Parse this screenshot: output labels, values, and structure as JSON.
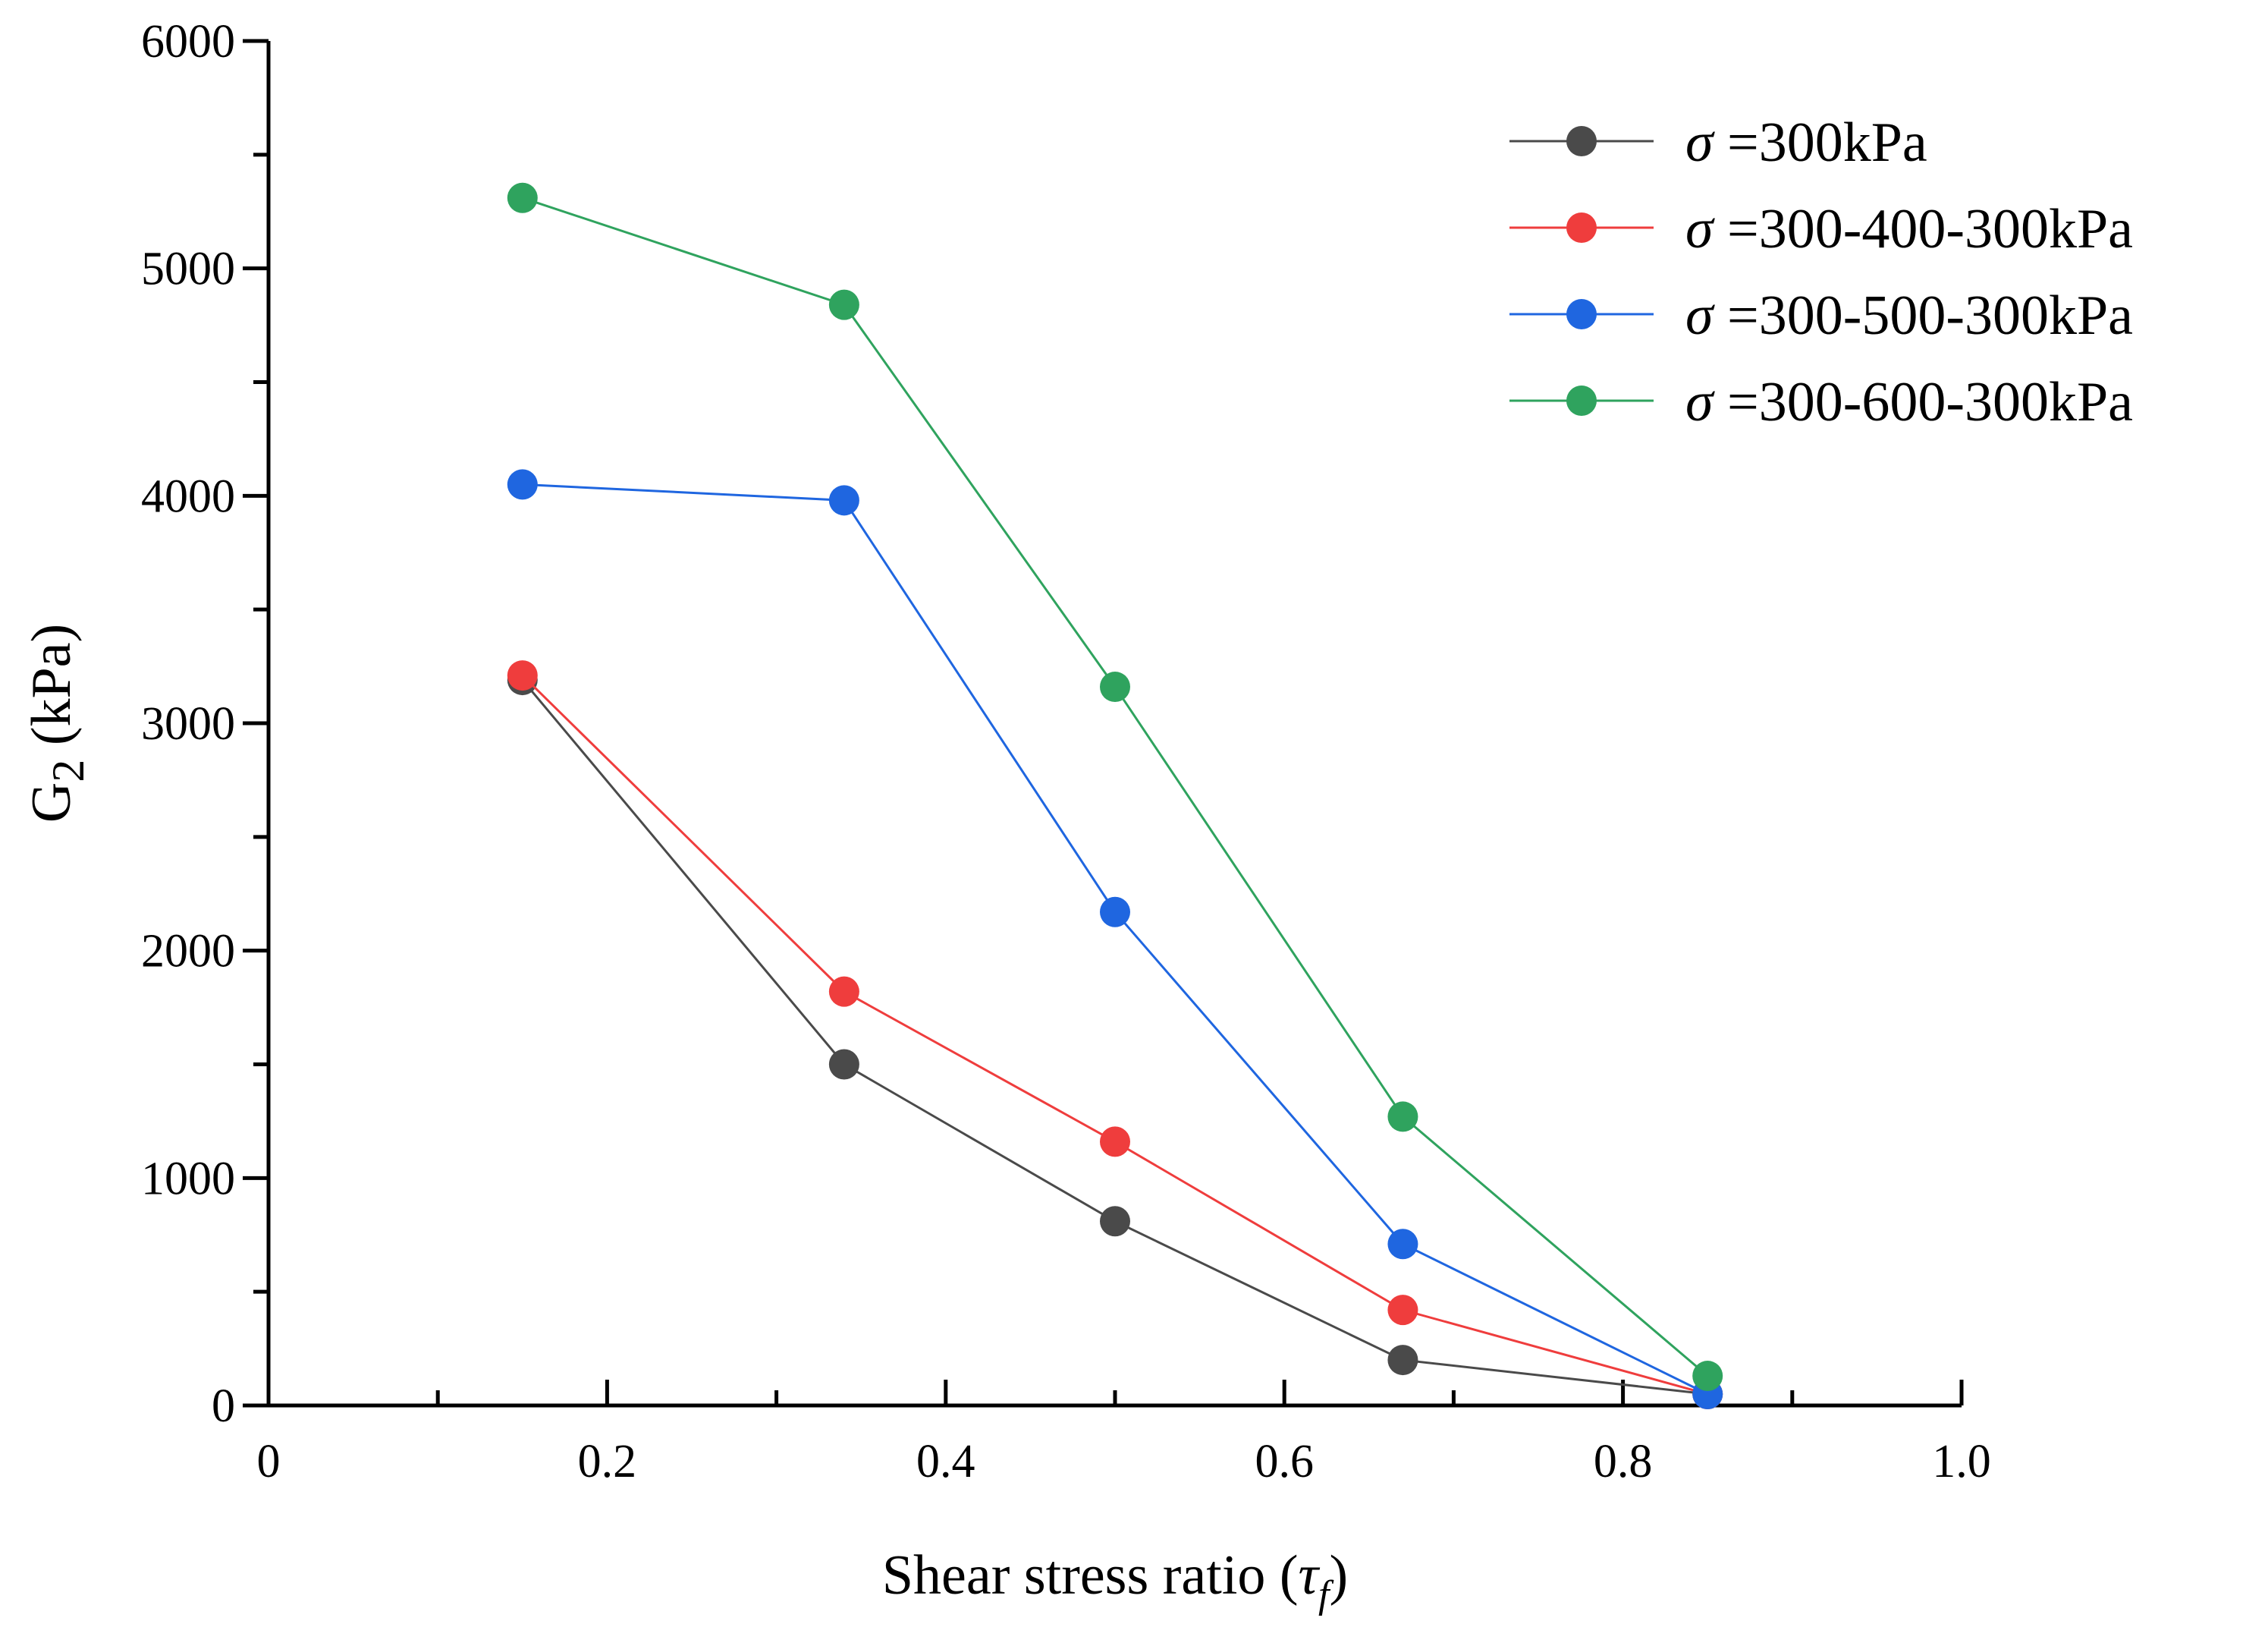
{
  "chart_data": {
    "type": "line",
    "xlabel": {
      "text": "Shear stress ratio (",
      "symbol": "τ",
      "subscript": "f",
      "close": ")"
    },
    "ylabel": {
      "text": "G",
      "subscript": "2",
      "unit": " (kPa)"
    },
    "xlim": [
      0,
      1.0
    ],
    "ylim": [
      0,
      6000
    ],
    "xticks": [
      0,
      0.2,
      0.4,
      0.6,
      0.8,
      1.0
    ],
    "xtick_labels": [
      "0",
      "0.2",
      "0.4",
      "0.6",
      "0.8",
      "1.0"
    ],
    "yticks": [
      0,
      1000,
      2000,
      3000,
      4000,
      5000,
      6000
    ],
    "ytick_labels": [
      "0",
      "1000",
      "2000",
      "3000",
      "4000",
      "5000",
      "6000"
    ],
    "grid": false,
    "legend_position": "top-right",
    "x": [
      0.15,
      0.34,
      0.5,
      0.67,
      0.85
    ],
    "series": [
      {
        "name_symbol": "σ",
        "name_text": " =300kPa",
        "color": "#4a4a4a",
        "values": [
          3190,
          1500,
          810,
          200,
          50
        ]
      },
      {
        "name_symbol": "σ",
        "name_text": " =300-400-300kPa",
        "color": "#ef3d3d",
        "values": [
          3210,
          1820,
          1160,
          420,
          50
        ]
      },
      {
        "name_symbol": "σ",
        "name_text": " =300-500-300kPa",
        "color": "#1f66e0",
        "values": [
          4050,
          3980,
          2170,
          710,
          50
        ]
      },
      {
        "name_symbol": "σ",
        "name_text": " =300-600-300kPa",
        "color": "#2fa35e",
        "values": [
          5310,
          4840,
          3160,
          1270,
          130
        ]
      }
    ]
  }
}
